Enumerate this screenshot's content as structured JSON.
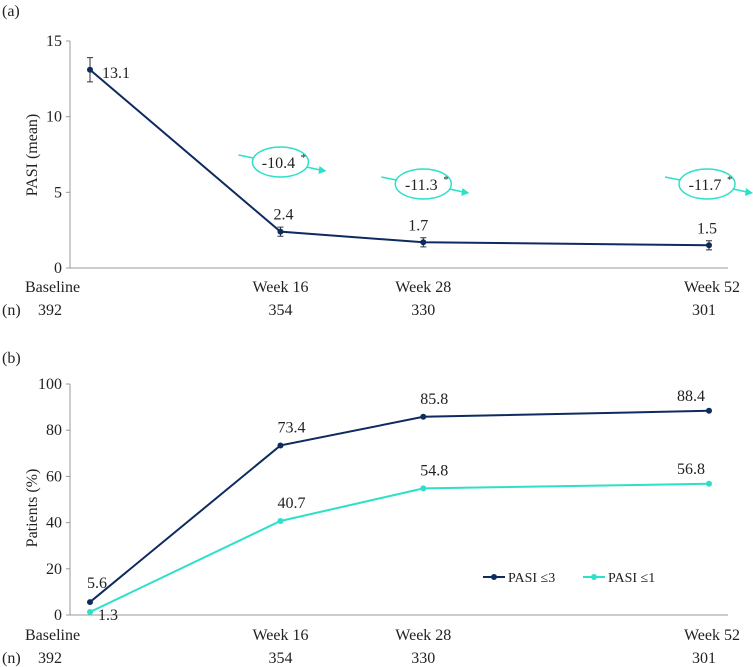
{
  "chart_data": [
    {
      "type": "line",
      "panel_label": "(a)",
      "ylabel": "PASI (mean)",
      "ylim": [
        0,
        15
      ],
      "yticks": [
        "0",
        "5",
        "10",
        "15"
      ],
      "categories": [
        "Baseline",
        "Week 16",
        "Week 28",
        "Week 52"
      ],
      "weeks": [
        0,
        16,
        28,
        52
      ],
      "n_label": "(n)",
      "n_values": [
        "392",
        "354",
        "330",
        "301"
      ],
      "series": [
        {
          "name": "PASI (mean)",
          "color": "#0d2b5e",
          "values": [
            13.1,
            2.4,
            1.7,
            1.5
          ],
          "labels": [
            "13.1",
            "2.4",
            "1.7",
            "1.5"
          ],
          "error": [
            0.8,
            0.3,
            0.3,
            0.3
          ]
        }
      ],
      "annotations": [
        {
          "text": "-10.4",
          "sup": "*",
          "week": 16
        },
        {
          "text": "-11.3",
          "sup": "*",
          "week": 28
        },
        {
          "text": "-11.7",
          "sup": "*",
          "week": 52
        }
      ],
      "annotation_color": "#2de0c8"
    },
    {
      "type": "line",
      "panel_label": "(b)",
      "ylabel": "Patients (%)",
      "ylim": [
        0,
        100
      ],
      "yticks": [
        "0",
        "20",
        "40",
        "60",
        "80",
        "100"
      ],
      "categories": [
        "Baseline",
        "Week 16",
        "Week 28",
        "Week 52"
      ],
      "weeks": [
        0,
        16,
        28,
        52
      ],
      "n_label": "(n)",
      "n_values": [
        "392",
        "354",
        "330",
        "301"
      ],
      "series": [
        {
          "name": "PASI ≤3",
          "color": "#0d2b5e",
          "values": [
            5.6,
            73.4,
            85.8,
            88.4
          ],
          "labels": [
            "5.6",
            "73.4",
            "85.8",
            "88.4"
          ]
        },
        {
          "name": "PASI ≤1",
          "color": "#2de0c8",
          "values": [
            1.3,
            40.7,
            54.8,
            56.8
          ],
          "labels": [
            "1.3",
            "40.7",
            "54.8",
            "56.8"
          ]
        }
      ],
      "legend_position": "bottom-right"
    }
  ]
}
